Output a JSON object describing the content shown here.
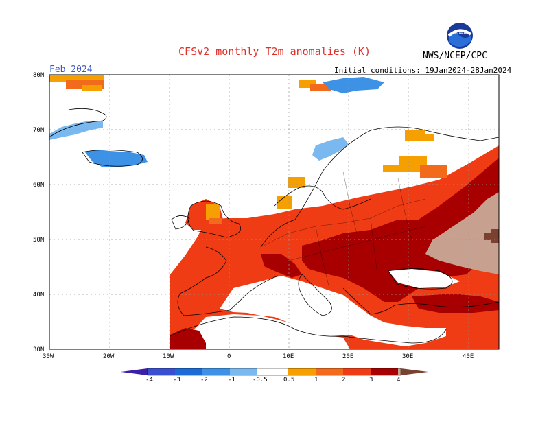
{
  "title": "CFSv2 monthly T2m anomalies (K)",
  "month": "Feb 2024",
  "initial_conditions": "Initial conditions: 19Jan2024-28Jan2024",
  "agency": "NWS/NCEP/CPC",
  "logo_text": "NOAA",
  "lat_labels": [
    "80N",
    "70N",
    "60N",
    "50N",
    "40N",
    "30N"
  ],
  "lon_labels": [
    "30W",
    "20W",
    "10W",
    "0",
    "10E",
    "20E",
    "30E",
    "40E"
  ],
  "colorbar": {
    "labels": [
      "-4",
      "-3",
      "-2",
      "-1",
      "-0.5",
      "0.5",
      "1",
      "2",
      "3",
      "4"
    ],
    "neg_colors": [
      "#3b1fa8",
      "#3a4fd0",
      "#1c6bd6",
      "#3d92e6",
      "#7ab8f0"
    ],
    "pos_colors": [
      "#f5a000",
      "#f26a1c",
      "#f03c14",
      "#a80000",
      "#c8a090",
      "#7a4030"
    ]
  }
}
